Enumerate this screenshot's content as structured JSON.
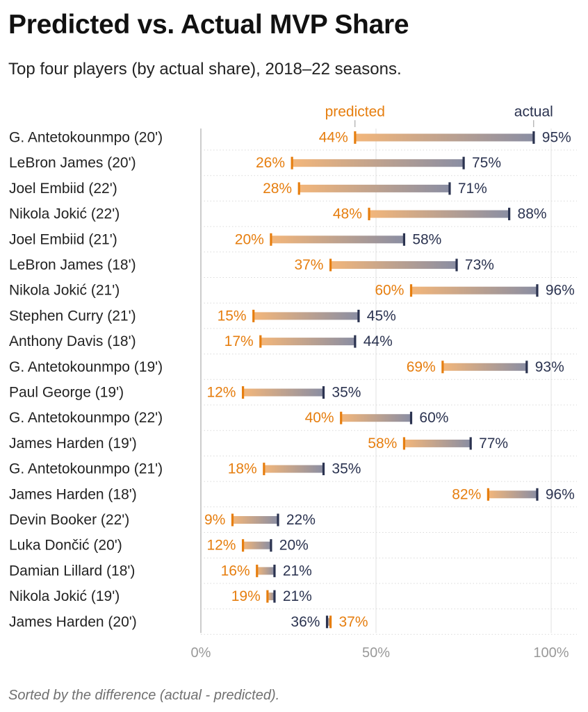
{
  "title": "Predicted vs. Actual MVP Share",
  "subtitle": "Top four players (by actual share), 2018–22 seasons.",
  "note": "Sorted by the difference (actual - predicted).",
  "colors": {
    "predicted": "#e67e0f",
    "actual": "#2b3350",
    "grid": "#cccccc",
    "axis_text": "#999999",
    "label_text": "#222222"
  },
  "chart_data": {
    "type": "dumbbell",
    "series": [
      {
        "name": "predicted",
        "key": "predicted"
      },
      {
        "name": "actual",
        "key": "actual"
      }
    ],
    "x_ticks": [
      {
        "value": 0,
        "label": "0%"
      },
      {
        "value": 50,
        "label": "50%"
      },
      {
        "value": 100,
        "label": "100%"
      }
    ],
    "xlim": [
      0,
      100
    ],
    "grid": true,
    "rows": [
      {
        "label": "G. Antetokounmpo (20')",
        "predicted": 44,
        "actual": 95,
        "predicted_label": "44%",
        "actual_label": "95%"
      },
      {
        "label": "LeBron James (20')",
        "predicted": 26,
        "actual": 75,
        "predicted_label": "26%",
        "actual_label": "75%"
      },
      {
        "label": "Joel Embiid (22')",
        "predicted": 28,
        "actual": 71,
        "predicted_label": "28%",
        "actual_label": "71%"
      },
      {
        "label": "Nikola Jokić (22')",
        "predicted": 48,
        "actual": 88,
        "predicted_label": "48%",
        "actual_label": "88%"
      },
      {
        "label": "Joel Embiid (21')",
        "predicted": 20,
        "actual": 58,
        "predicted_label": "20%",
        "actual_label": "58%"
      },
      {
        "label": "LeBron James (18')",
        "predicted": 37,
        "actual": 73,
        "predicted_label": "37%",
        "actual_label": "73%"
      },
      {
        "label": "Nikola Jokić (21')",
        "predicted": 60,
        "actual": 96,
        "predicted_label": "60%",
        "actual_label": "96%"
      },
      {
        "label": "Stephen Curry (21')",
        "predicted": 15,
        "actual": 45,
        "predicted_label": "15%",
        "actual_label": "45%"
      },
      {
        "label": "Anthony Davis (18')",
        "predicted": 17,
        "actual": 44,
        "predicted_label": "17%",
        "actual_label": "44%"
      },
      {
        "label": "G. Antetokounmpo (19')",
        "predicted": 69,
        "actual": 93,
        "predicted_label": "69%",
        "actual_label": "93%"
      },
      {
        "label": "Paul George (19')",
        "predicted": 12,
        "actual": 35,
        "predicted_label": "12%",
        "actual_label": "35%"
      },
      {
        "label": "G. Antetokounmpo (22')",
        "predicted": 40,
        "actual": 60,
        "predicted_label": "40%",
        "actual_label": "60%"
      },
      {
        "label": "James Harden (19')",
        "predicted": 58,
        "actual": 77,
        "predicted_label": "58%",
        "actual_label": "77%"
      },
      {
        "label": "G. Antetokounmpo (21')",
        "predicted": 18,
        "actual": 35,
        "predicted_label": "18%",
        "actual_label": "35%"
      },
      {
        "label": "James Harden (18')",
        "predicted": 82,
        "actual": 96,
        "predicted_label": "82%",
        "actual_label": "96%"
      },
      {
        "label": "Devin Booker (22')",
        "predicted": 9,
        "actual": 22,
        "predicted_label": "9%",
        "actual_label": "22%"
      },
      {
        "label": "Luka Dončić (20')",
        "predicted": 12,
        "actual": 20,
        "predicted_label": "12%",
        "actual_label": "20%"
      },
      {
        "label": "Damian Lillard (18')",
        "predicted": 16,
        "actual": 21,
        "predicted_label": "16%",
        "actual_label": "21%"
      },
      {
        "label": "Nikola Jokić (19')",
        "predicted": 19,
        "actual": 21,
        "predicted_label": "19%",
        "actual_label": "21%"
      },
      {
        "label": "James Harden (20')",
        "predicted": 37,
        "actual": 36,
        "predicted_label": "37%",
        "actual_label": "36%"
      }
    ]
  }
}
